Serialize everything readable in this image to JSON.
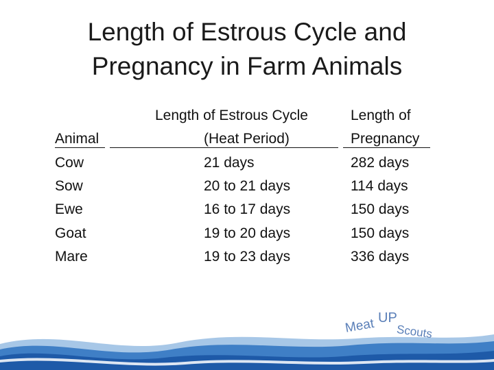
{
  "slide": {
    "title_line1": "Length of Estrous Cycle and",
    "title_line2": "Pregnancy in Farm Animals"
  },
  "table": {
    "headers": {
      "animal": "Animal",
      "estrous_line1": "Length of Estrous Cycle",
      "estrous_line2": "(Heat Period)",
      "pregnancy_line1": "Length of",
      "pregnancy_line2": "Pregnancy"
    },
    "rows": [
      {
        "animal": "Cow",
        "estrous": "21 days",
        "pregnancy": "282 days"
      },
      {
        "animal": "Sow",
        "estrous": "20 to 21 days",
        "pregnancy": "114 days"
      },
      {
        "animal": "Ewe",
        "estrous": "16 to 17 days",
        "pregnancy": "150 days"
      },
      {
        "animal": "Goat",
        "estrous": "19 to 20 days",
        "pregnancy": "150 days"
      },
      {
        "animal": "Mare",
        "estrous": "19 to 23 days",
        "pregnancy": "336 days"
      }
    ]
  },
  "logo": {
    "word1": "Meat",
    "word2": "UP",
    "word3": "Scouts",
    "colors": {
      "text": "#5a7fb8",
      "wave_dark": "#1e5aa8",
      "wave_mid": "#3f7fc6",
      "wave_light": "#a7c7e7"
    }
  }
}
